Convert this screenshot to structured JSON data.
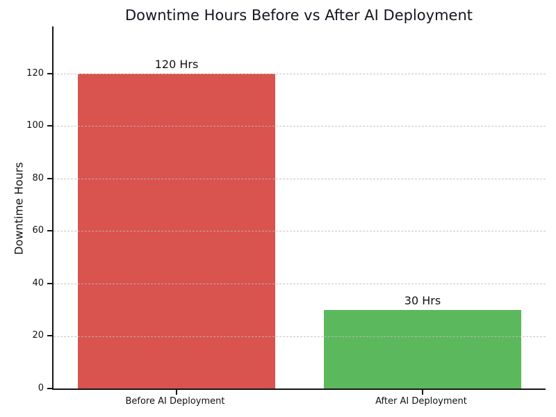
{
  "chart_data": {
    "type": "bar",
    "title": "Downtime Hours Before vs After AI Deployment",
    "ylabel": "Downtime Hours",
    "xlabel": "",
    "categories": [
      "Before AI Deployment",
      "After AI Deployment"
    ],
    "values": [
      120,
      30
    ],
    "bar_labels": [
      "120 Hrs",
      "30 Hrs"
    ],
    "bar_colors": [
      "#d9534f",
      "#5cb85c"
    ],
    "yticks": [
      0,
      20,
      40,
      60,
      80,
      100,
      120
    ],
    "ylim": [
      0,
      138
    ],
    "grid": "horizontal dashed gridlines drawn over bars",
    "legend": "none",
    "background": "#ffffff"
  },
  "colors": {
    "bar_before": "#d9534f",
    "bar_after": "#5cb85c",
    "axis": "#141414",
    "grid": "#bbbbbb",
    "text": "#111111",
    "title": "#15151f",
    "background": "#ffffff"
  }
}
